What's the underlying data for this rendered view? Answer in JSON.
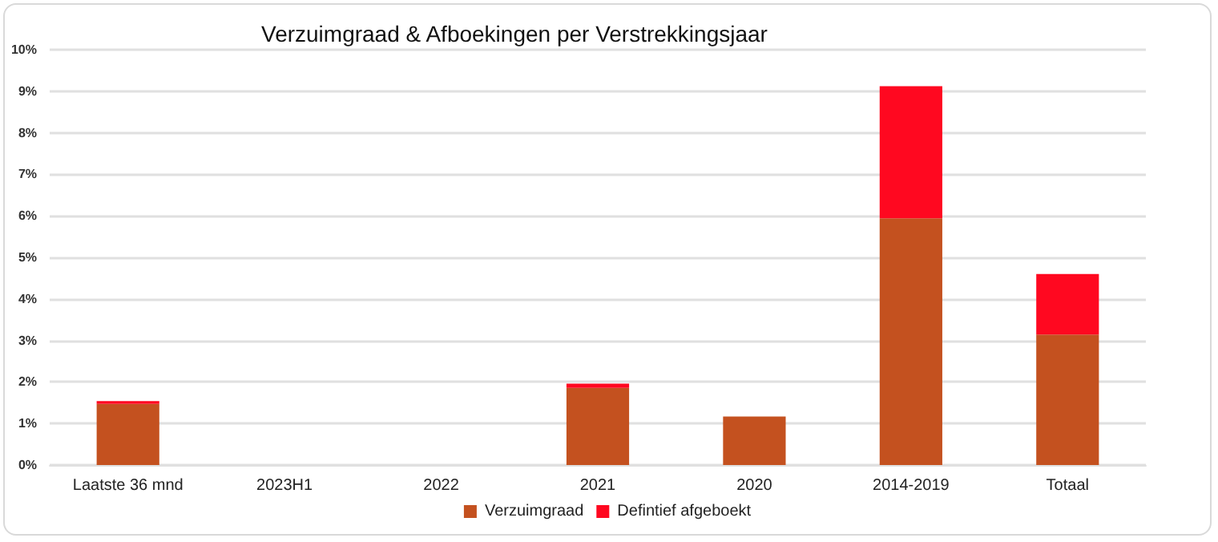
{
  "chart_data": {
    "type": "bar",
    "title": "Verzuimgraad & Afboekingen per Verstrekkingsjaar",
    "stacked": true,
    "categories": [
      "Laatste 36 mnd",
      "2023H1",
      "2022",
      "2021",
      "2020",
      "2014-2019",
      "Totaal"
    ],
    "series": [
      {
        "name": "Verzuimgraad",
        "color": "#c4511f",
        "values": [
          1.47,
          null,
          null,
          1.86,
          1.17,
          5.94,
          3.14
        ]
      },
      {
        "name": "Defintief afgeboekt",
        "color": "#ff0820",
        "values": [
          0.07,
          null,
          null,
          0.1,
          null,
          3.18,
          1.46
        ]
      }
    ],
    "ylim": [
      0,
      10
    ],
    "yticks": [
      {
        "value": 0,
        "label": "0%"
      },
      {
        "value": 1,
        "label": "1%"
      },
      {
        "value": 2,
        "label": "2%"
      },
      {
        "value": 3,
        "label": "3%"
      },
      {
        "value": 4,
        "label": "4%"
      },
      {
        "value": 5,
        "label": "5%"
      },
      {
        "value": 6,
        "label": "6%"
      },
      {
        "value": 7,
        "label": "7%"
      },
      {
        "value": 8,
        "label": "8%"
      },
      {
        "value": 9,
        "label": "9%"
      },
      {
        "value": 10,
        "label": "10%"
      }
    ],
    "grid": "y",
    "legend": "bottom"
  }
}
